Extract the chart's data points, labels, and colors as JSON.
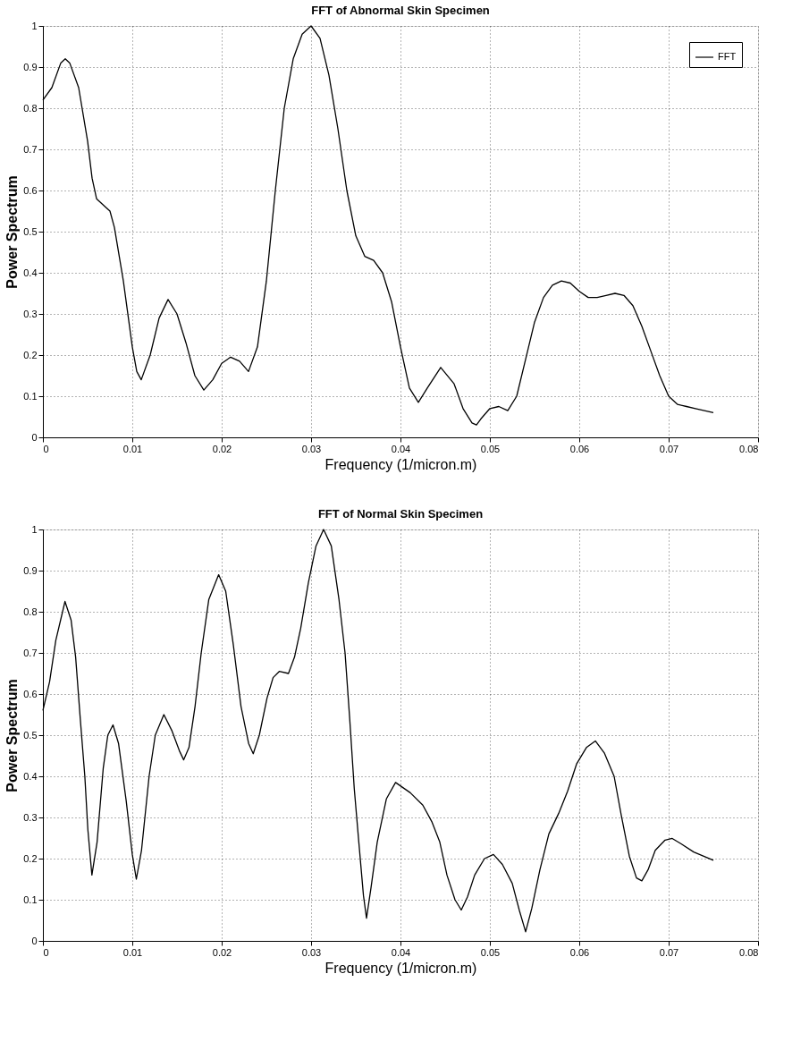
{
  "chart_data": [
    {
      "type": "line",
      "title": "FFT of Abnormal Skin Specimen",
      "xlabel": "Frequency (1/micron.m)",
      "ylabel": "Power Spectrum",
      "x": [
        0,
        0.001,
        0.002,
        0.0025,
        0.003,
        0.004,
        0.005,
        0.0055,
        0.006,
        0.007,
        0.0075,
        0.008,
        0.009,
        0.01,
        0.0105,
        0.011,
        0.012,
        0.013,
        0.014,
        0.015,
        0.016,
        0.017,
        0.018,
        0.019,
        0.02,
        0.021,
        0.022,
        0.023,
        0.024,
        0.025,
        0.026,
        0.027,
        0.028,
        0.029,
        0.03,
        0.031,
        0.032,
        0.033,
        0.034,
        0.035,
        0.036,
        0.037,
        0.038,
        0.039,
        0.04,
        0.041,
        0.042,
        0.043,
        0.0445,
        0.046,
        0.047,
        0.048,
        0.0485,
        0.049,
        0.05,
        0.051,
        0.052,
        0.053,
        0.054,
        0.055,
        0.056,
        0.057,
        0.058,
        0.059,
        0.06,
        0.061,
        0.062,
        0.063,
        0.064,
        0.065,
        0.066,
        0.067,
        0.068,
        0.069,
        0.07,
        0.071,
        0.072,
        0.073,
        0.075
      ],
      "series": [
        {
          "name": "FFT",
          "color": "#000000",
          "values": [
            0.82,
            0.85,
            0.91,
            0.92,
            0.91,
            0.85,
            0.72,
            0.63,
            0.58,
            0.56,
            0.55,
            0.51,
            0.38,
            0.22,
            0.16,
            0.14,
            0.2,
            0.29,
            0.335,
            0.3,
            0.23,
            0.15,
            0.115,
            0.14,
            0.18,
            0.195,
            0.185,
            0.16,
            0.22,
            0.38,
            0.6,
            0.8,
            0.92,
            0.98,
            1.0,
            0.97,
            0.88,
            0.75,
            0.6,
            0.49,
            0.44,
            0.43,
            0.4,
            0.33,
            0.22,
            0.12,
            0.085,
            0.12,
            0.17,
            0.13,
            0.07,
            0.035,
            0.03,
            0.045,
            0.07,
            0.075,
            0.065,
            0.1,
            0.19,
            0.28,
            0.34,
            0.37,
            0.38,
            0.375,
            0.355,
            0.34,
            0.34,
            0.345,
            0.35,
            0.345,
            0.32,
            0.27,
            0.21,
            0.15,
            0.1,
            0.08,
            0.075,
            0.07,
            0.06
          ]
        }
      ],
      "xlim": [
        0,
        0.08
      ],
      "xticks": [
        0,
        0.01,
        0.02,
        0.03,
        0.04,
        0.05,
        0.06,
        0.07,
        0.08
      ],
      "ylim": [
        0,
        1
      ],
      "yticks": [
        0,
        0.1,
        0.2,
        0.3,
        0.4,
        0.5,
        0.6,
        0.7,
        0.8,
        0.9,
        1
      ],
      "grid": true,
      "legend": "top right",
      "line_style": "solid"
    },
    {
      "type": "line",
      "title": "FFT of Normal Skin Specimen",
      "xlabel": "Frequency (1/micron.m)",
      "ylabel": "Power Spectrum",
      "x": [
        0,
        0.00075,
        0.00144,
        0.00247,
        0.00315,
        0.00366,
        0.00418,
        0.00469,
        0.00503,
        0.00548,
        0.00606,
        0.00675,
        0.00726,
        0.00784,
        0.00846,
        0.00932,
        0.01,
        0.01045,
        0.01103,
        0.01188,
        0.01257,
        0.01353,
        0.01445,
        0.01531,
        0.01575,
        0.01634,
        0.01702,
        0.01771,
        0.01856,
        0.01966,
        0.02045,
        0.0213,
        0.02216,
        0.02301,
        0.02353,
        0.02421,
        0.02507,
        0.02575,
        0.02644,
        0.02747,
        0.02815,
        0.02884,
        0.02969,
        0.03055,
        0.0314,
        0.03226,
        0.03312,
        0.0338,
        0.03432,
        0.03483,
        0.03534,
        0.03586,
        0.0362,
        0.03671,
        0.0374,
        0.03842,
        0.03945,
        0.0411,
        0.0425,
        0.0435,
        0.0444,
        0.0452,
        0.0461,
        0.0468,
        0.0475,
        0.0483,
        0.0494,
        0.0504,
        0.0514,
        0.0525,
        0.0533,
        0.054,
        0.0547,
        0.0556,
        0.0566,
        0.0577,
        0.0587,
        0.0597,
        0.0608,
        0.0618,
        0.0628,
        0.0639,
        0.0647,
        0.0656,
        0.0664,
        0.067,
        0.0677,
        0.0685,
        0.0696,
        0.0704,
        0.0714,
        0.0728,
        0.075
      ],
      "series": [
        {
          "name": "FFT",
          "color": "#000000",
          "values": [
            0.56,
            0.63,
            0.73,
            0.825,
            0.78,
            0.69,
            0.54,
            0.4,
            0.27,
            0.16,
            0.24,
            0.42,
            0.5,
            0.525,
            0.48,
            0.34,
            0.21,
            0.15,
            0.22,
            0.4,
            0.5,
            0.55,
            0.51,
            0.46,
            0.44,
            0.47,
            0.57,
            0.7,
            0.83,
            0.89,
            0.85,
            0.72,
            0.57,
            0.48,
            0.455,
            0.5,
            0.59,
            0.64,
            0.655,
            0.65,
            0.69,
            0.76,
            0.87,
            0.96,
            1.0,
            0.96,
            0.83,
            0.7,
            0.54,
            0.37,
            0.24,
            0.11,
            0.055,
            0.13,
            0.24,
            0.345,
            0.385,
            0.36,
            0.33,
            0.29,
            0.24,
            0.16,
            0.1,
            0.075,
            0.107,
            0.16,
            0.2,
            0.21,
            0.186,
            0.14,
            0.074,
            0.022,
            0.08,
            0.173,
            0.26,
            0.31,
            0.364,
            0.43,
            0.47,
            0.486,
            0.457,
            0.4,
            0.305,
            0.206,
            0.153,
            0.146,
            0.173,
            0.22,
            0.245,
            0.249,
            0.236,
            0.216,
            0.196
          ]
        }
      ],
      "xlim": [
        0,
        0.08
      ],
      "xticks": [
        0,
        0.01,
        0.02,
        0.03,
        0.04,
        0.05,
        0.06,
        0.07,
        0.08
      ],
      "ylim": [
        0,
        1
      ],
      "yticks": [
        0,
        0.1,
        0.2,
        0.3,
        0.4,
        0.5,
        0.6,
        0.7,
        0.8,
        0.9,
        1
      ],
      "grid": true,
      "legend": "top right",
      "line_style": "solid"
    }
  ]
}
